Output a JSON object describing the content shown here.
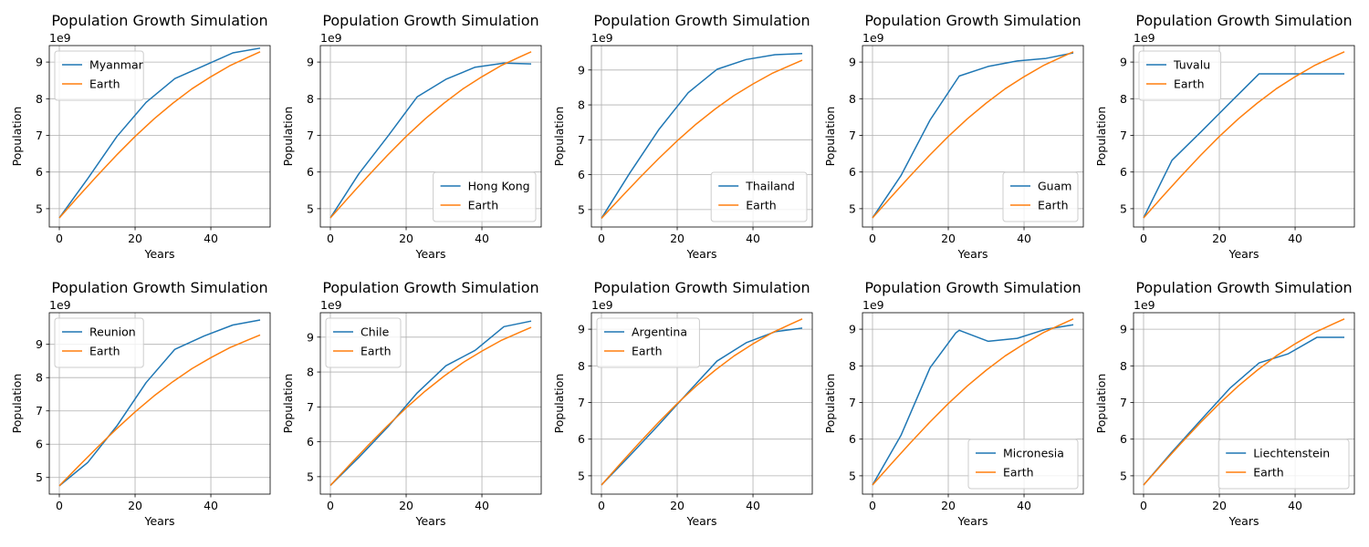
{
  "chart_data": [
    {
      "type": "line",
      "title": "Population Growth Simulation",
      "xlabel": "Years",
      "ylabel": "Population",
      "offset_text": "1e9",
      "xlim": [
        -2.65,
        55.65
      ],
      "ylim": [
        4.5,
        9.45
      ],
      "xticks": [
        0,
        20,
        40
      ],
      "yticks": [
        5,
        6,
        7,
        8,
        9
      ],
      "grid": true,
      "legend_position": "upper left",
      "series": [
        {
          "name": "Myanmar",
          "color": "#1f77b4",
          "x": [
            0,
            7.5,
            15.2,
            22.9,
            30.5,
            38.2,
            45.8,
            53
          ],
          "y": [
            4.75,
            5.82,
            6.97,
            7.9,
            8.55,
            8.9,
            9.25,
            9.38
          ]
        },
        {
          "name": "Earth",
          "color": "#ff7f0e",
          "x": [
            0,
            5,
            10,
            15,
            20,
            25,
            30,
            35,
            40,
            45,
            50,
            53
          ],
          "y": [
            4.75,
            5.33,
            5.9,
            6.45,
            6.97,
            7.45,
            7.88,
            8.27,
            8.6,
            8.9,
            9.14,
            9.28
          ]
        }
      ]
    },
    {
      "type": "line",
      "title": "Population Growth Simulation",
      "xlabel": "Years",
      "ylabel": "Population",
      "offset_text": "1e9",
      "xlim": [
        -2.65,
        55.65
      ],
      "ylim": [
        4.5,
        9.45
      ],
      "xticks": [
        0,
        20,
        40
      ],
      "yticks": [
        5,
        6,
        7,
        8,
        9
      ],
      "grid": true,
      "legend_position": "lower right",
      "series": [
        {
          "name": "Hong Kong",
          "color": "#1f77b4",
          "x": [
            0,
            7.5,
            15.2,
            22.9,
            30.5,
            38.2,
            45.8,
            53
          ],
          "y": [
            4.75,
            5.95,
            6.98,
            8.05,
            8.53,
            8.86,
            8.97,
            8.95
          ]
        },
        {
          "name": "Earth",
          "color": "#ff7f0e",
          "x": [
            0,
            5,
            10,
            15,
            20,
            25,
            30,
            35,
            40,
            45,
            50,
            53
          ],
          "y": [
            4.75,
            5.33,
            5.9,
            6.45,
            6.97,
            7.45,
            7.88,
            8.27,
            8.6,
            8.9,
            9.14,
            9.28
          ]
        }
      ]
    },
    {
      "type": "line",
      "title": "Population Growth Simulation",
      "xlabel": "Years",
      "ylabel": "Population",
      "offset_text": "1e9",
      "xlim": [
        -2.65,
        55.65
      ],
      "ylim": [
        4.5,
        9.7
      ],
      "xticks": [
        0,
        20,
        40
      ],
      "yticks": [
        5,
        6,
        7,
        8,
        9
      ],
      "grid": true,
      "legend_position": "lower right",
      "series": [
        {
          "name": "Thailand",
          "color": "#1f77b4",
          "x": [
            0,
            7.5,
            15.2,
            22.9,
            30.5,
            38.2,
            45.8,
            53
          ],
          "y": [
            4.75,
            6.05,
            7.3,
            8.35,
            9.02,
            9.3,
            9.44,
            9.47
          ]
        },
        {
          "name": "Earth",
          "color": "#ff7f0e",
          "x": [
            0,
            5,
            10,
            15,
            20,
            25,
            30,
            35,
            40,
            45,
            50,
            53
          ],
          "y": [
            4.75,
            5.33,
            5.9,
            6.45,
            6.97,
            7.45,
            7.88,
            8.27,
            8.6,
            8.9,
            9.14,
            9.28
          ]
        }
      ]
    },
    {
      "type": "line",
      "title": "Population Growth Simulation",
      "xlabel": "Years",
      "ylabel": "Population",
      "offset_text": "1e9",
      "xlim": [
        -2.65,
        55.65
      ],
      "ylim": [
        4.5,
        9.45
      ],
      "xticks": [
        0,
        20,
        40
      ],
      "yticks": [
        5,
        6,
        7,
        8,
        9
      ],
      "grid": true,
      "legend_position": "lower right",
      "series": [
        {
          "name": "Guam",
          "color": "#1f77b4",
          "x": [
            0,
            7.5,
            15.2,
            22.9,
            30.5,
            38.2,
            45.8,
            53
          ],
          "y": [
            4.75,
            5.9,
            7.42,
            8.62,
            8.88,
            9.03,
            9.1,
            9.25
          ]
        },
        {
          "name": "Earth",
          "color": "#ff7f0e",
          "x": [
            0,
            5,
            10,
            15,
            20,
            25,
            30,
            35,
            40,
            45,
            50,
            53
          ],
          "y": [
            4.75,
            5.33,
            5.9,
            6.45,
            6.97,
            7.45,
            7.88,
            8.27,
            8.6,
            8.9,
            9.14,
            9.28
          ]
        }
      ]
    },
    {
      "type": "line",
      "title": "Population Growth Simulation",
      "xlabel": "Years",
      "ylabel": "Population",
      "offset_text": "1e9",
      "xlim": [
        -2.65,
        55.65
      ],
      "ylim": [
        4.5,
        9.45
      ],
      "xticks": [
        0,
        20,
        40
      ],
      "yticks": [
        5,
        6,
        7,
        8,
        9
      ],
      "grid": true,
      "legend_position": "upper left",
      "series": [
        {
          "name": "Tuvalu",
          "color": "#1f77b4",
          "x": [
            0,
            7.5,
            15.2,
            22.9,
            30.5,
            38.2,
            45.8,
            53
          ],
          "y": [
            4.75,
            6.32,
            7.1,
            7.9,
            8.68,
            8.68,
            8.68,
            8.68
          ]
        },
        {
          "name": "Earth",
          "color": "#ff7f0e",
          "x": [
            0,
            5,
            10,
            15,
            20,
            25,
            30,
            35,
            40,
            45,
            50,
            53
          ],
          "y": [
            4.75,
            5.33,
            5.9,
            6.45,
            6.97,
            7.45,
            7.88,
            8.27,
            8.6,
            8.9,
            9.14,
            9.28
          ]
        }
      ]
    },
    {
      "type": "line",
      "title": "Population Growth Simulation",
      "xlabel": "Years",
      "ylabel": "Population",
      "offset_text": "1e9",
      "xlim": [
        -2.65,
        55.65
      ],
      "ylim": [
        4.5,
        9.95
      ],
      "xticks": [
        0,
        20,
        40
      ],
      "yticks": [
        5,
        6,
        7,
        8,
        9
      ],
      "grid": true,
      "legend_position": "upper left",
      "series": [
        {
          "name": "Reunion",
          "color": "#1f77b4",
          "x": [
            0,
            7.5,
            15.2,
            22.9,
            30.5,
            38.2,
            45.8,
            53
          ],
          "y": [
            4.75,
            5.45,
            6.55,
            7.85,
            8.85,
            9.25,
            9.58,
            9.73
          ]
        },
        {
          "name": "Earth",
          "color": "#ff7f0e",
          "x": [
            0,
            5,
            10,
            15,
            20,
            25,
            30,
            35,
            40,
            45,
            50,
            53
          ],
          "y": [
            4.75,
            5.33,
            5.9,
            6.45,
            6.97,
            7.45,
            7.88,
            8.27,
            8.6,
            8.9,
            9.14,
            9.28
          ]
        }
      ]
    },
    {
      "type": "line",
      "title": "Population Growth Simulation",
      "xlabel": "Years",
      "ylabel": "Population",
      "offset_text": "1e9",
      "xlim": [
        -2.65,
        55.65
      ],
      "ylim": [
        4.5,
        9.7
      ],
      "xticks": [
        0,
        20,
        40
      ],
      "yticks": [
        5,
        6,
        7,
        8,
        9
      ],
      "grid": true,
      "legend_position": "upper left",
      "series": [
        {
          "name": "Chile",
          "color": "#1f77b4",
          "x": [
            0,
            7.5,
            15.2,
            22.9,
            30.5,
            38.2,
            45.8,
            53
          ],
          "y": [
            4.75,
            5.55,
            6.43,
            7.4,
            8.18,
            8.62,
            9.3,
            9.46
          ]
        },
        {
          "name": "Earth",
          "color": "#ff7f0e",
          "x": [
            0,
            5,
            10,
            15,
            20,
            25,
            30,
            35,
            40,
            45,
            50,
            53
          ],
          "y": [
            4.75,
            5.33,
            5.9,
            6.45,
            6.97,
            7.45,
            7.88,
            8.27,
            8.6,
            8.9,
            9.14,
            9.28
          ]
        }
      ]
    },
    {
      "type": "line",
      "title": "Population Growth Simulation",
      "xlabel": "Years",
      "ylabel": "Population",
      "offset_text": "1e9",
      "xlim": [
        -2.65,
        55.65
      ],
      "ylim": [
        4.5,
        9.45
      ],
      "xticks": [
        0,
        20,
        40
      ],
      "yticks": [
        5,
        6,
        7,
        8,
        9
      ],
      "grid": true,
      "legend_position": "upper left",
      "series": [
        {
          "name": "Argentina",
          "color": "#1f77b4",
          "x": [
            0,
            7.5,
            15.2,
            22.9,
            30.5,
            38.2,
            45.8,
            53
          ],
          "y": [
            4.75,
            5.55,
            6.4,
            7.28,
            8.13,
            8.63,
            8.93,
            9.03
          ]
        },
        {
          "name": "Earth",
          "color": "#ff7f0e",
          "x": [
            0,
            5,
            10,
            15,
            20,
            25,
            30,
            35,
            40,
            45,
            50,
            53
          ],
          "y": [
            4.75,
            5.33,
            5.9,
            6.45,
            6.97,
            7.45,
            7.88,
            8.27,
            8.6,
            8.9,
            9.14,
            9.28
          ]
        }
      ]
    },
    {
      "type": "line",
      "title": "Population Growth Simulation",
      "xlabel": "Years",
      "ylabel": "Population",
      "offset_text": "1e9",
      "xlim": [
        -2.65,
        55.65
      ],
      "ylim": [
        4.5,
        9.45
      ],
      "xticks": [
        0,
        20,
        40
      ],
      "yticks": [
        5,
        6,
        7,
        8,
        9
      ],
      "grid": true,
      "legend_position": "lower right",
      "series": [
        {
          "name": "Micronesia",
          "color": "#1f77b4",
          "x": [
            0,
            7.5,
            15.2,
            22,
            22.9,
            30.5,
            38.2,
            45.8,
            53
          ],
          "y": [
            4.75,
            6.1,
            7.95,
            8.9,
            8.97,
            8.67,
            8.75,
            9.0,
            9.12
          ]
        },
        {
          "name": "Earth",
          "color": "#ff7f0e",
          "x": [
            0,
            5,
            10,
            15,
            20,
            25,
            30,
            35,
            40,
            45,
            50,
            53
          ],
          "y": [
            4.75,
            5.33,
            5.9,
            6.45,
            6.97,
            7.45,
            7.88,
            8.27,
            8.6,
            8.9,
            9.14,
            9.28
          ]
        }
      ]
    },
    {
      "type": "line",
      "title": "Population Growth Simulation",
      "xlabel": "Years",
      "ylabel": "Population",
      "offset_text": "1e9",
      "xlim": [
        -2.65,
        55.65
      ],
      "ylim": [
        4.5,
        9.45
      ],
      "xticks": [
        0,
        20,
        40
      ],
      "yticks": [
        5,
        6,
        7,
        8,
        9
      ],
      "grid": true,
      "legend_position": "lower right",
      "series": [
        {
          "name": "Liechtenstein",
          "color": "#1f77b4",
          "x": [
            0,
            7.5,
            15.2,
            22.9,
            30.5,
            38.2,
            45.8,
            53
          ],
          "y": [
            4.75,
            5.65,
            6.53,
            7.4,
            8.08,
            8.33,
            8.78,
            8.78
          ]
        },
        {
          "name": "Earth",
          "color": "#ff7f0e",
          "x": [
            0,
            5,
            10,
            15,
            20,
            25,
            30,
            35,
            40,
            45,
            50,
            53
          ],
          "y": [
            4.75,
            5.33,
            5.9,
            6.45,
            6.97,
            7.45,
            7.88,
            8.27,
            8.6,
            8.9,
            9.14,
            9.28
          ]
        }
      ]
    }
  ]
}
